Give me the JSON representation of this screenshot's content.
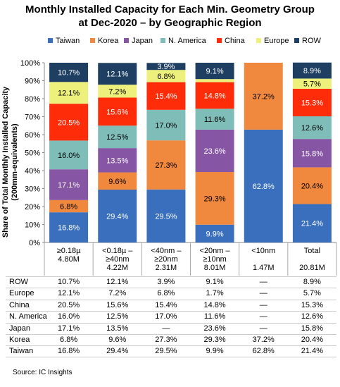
{
  "chart_data": {
    "type": "bar",
    "stacked": true,
    "title": "Monthly Installed Capacity for Each Min. Geometry Group at Dec-2020 – by Geographic Region",
    "title_lines": [
      "Monthly Installed Capacity for Each Min. Geometry Group",
      "at Dec-2020 – by Geographic Region"
    ],
    "ylabel_lines": [
      "Share of Total Monthly Installed Capacity",
      "(200mm-equivalents)"
    ],
    "ylim": [
      0,
      100
    ],
    "yticks": [
      "0%",
      "10%",
      "20%",
      "30%",
      "40%",
      "50%",
      "60%",
      "70%",
      "80%",
      "90%",
      "100%"
    ],
    "grid": false,
    "legend_position": "top",
    "categories": [
      {
        "lines": [
          "≥0.18µ",
          "4.80M"
        ]
      },
      {
        "lines": [
          "<0.18µ –",
          "≥40nm",
          "4.22M"
        ]
      },
      {
        "lines": [
          "<40nm –",
          "≥20nm",
          "2.31M"
        ]
      },
      {
        "lines": [
          "<20nm –",
          "≥10nm",
          "8.01M"
        ]
      },
      {
        "lines": [
          "<10nm",
          "",
          "1.47M"
        ]
      },
      {
        "lines": [
          "Total",
          "",
          "20.81M"
        ]
      }
    ],
    "series": [
      {
        "name": "Taiwan",
        "color": "#3a6fbd",
        "label_color": "#ffffff",
        "values": [
          16.8,
          29.4,
          29.5,
          9.9,
          62.8,
          21.4
        ],
        "table": [
          "16.8%",
          "29.4%",
          "29.5%",
          "9.9%",
          "62.8%",
          "21.4%"
        ]
      },
      {
        "name": "Korea",
        "color": "#f0883e",
        "label_color": "#000000",
        "values": [
          6.8,
          9.6,
          27.3,
          29.3,
          37.2,
          20.4
        ],
        "table": [
          "6.8%",
          "9.6%",
          "27.3%",
          "29.3%",
          "37.2%",
          "20.4%"
        ]
      },
      {
        "name": "Japan",
        "color": "#8656a4",
        "label_color": "#ffffff",
        "values": [
          17.1,
          13.5,
          0,
          23.6,
          0,
          15.8
        ],
        "table": [
          "17.1%",
          "13.5%",
          "—",
          "23.6%",
          "—",
          "15.8%"
        ]
      },
      {
        "name": "N. America",
        "color": "#7fbdb8",
        "label_color": "#000000",
        "values": [
          16.0,
          12.5,
          17.0,
          11.6,
          0,
          12.6
        ],
        "table": [
          "16.0%",
          "12.5%",
          "17.0%",
          "11.6%",
          "—",
          "12.6%"
        ]
      },
      {
        "name": "China",
        "color": "#ff2c0a",
        "label_color": "#ffffff",
        "values": [
          20.5,
          15.6,
          15.4,
          14.8,
          0,
          15.3
        ],
        "table": [
          "20.5%",
          "15.6%",
          "15.4%",
          "14.8%",
          "—",
          "15.3%"
        ]
      },
      {
        "name": "Europe",
        "color": "#eef07c",
        "label_color": "#000000",
        "values": [
          12.1,
          7.2,
          6.8,
          1.7,
          0,
          5.7
        ],
        "table": [
          "12.1%",
          "7.2%",
          "6.8%",
          "1.7%",
          "—",
          "5.7%"
        ]
      },
      {
        "name": "ROW",
        "color": "#1f3f62",
        "label_color": "#ffffff",
        "values": [
          10.7,
          12.1,
          3.9,
          9.1,
          0,
          8.9
        ],
        "table": [
          "10.7%",
          "12.1%",
          "3.9%",
          "9.1%",
          "—",
          "8.9%"
        ]
      }
    ],
    "hidden_segment_labels": [
      "3.9|1.7"
    ],
    "table_row_order": [
      "ROW",
      "Europe",
      "China",
      "N. America",
      "Japan",
      "Korea",
      "Taiwan"
    ]
  },
  "source": "Source:  IC Insights"
}
